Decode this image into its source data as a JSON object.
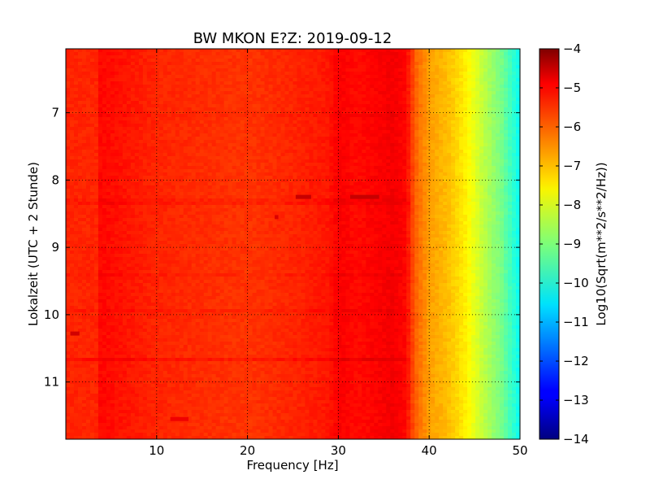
{
  "chart_data": {
    "type": "heatmap",
    "title": "BW MKON E?Z: 2019-09-12",
    "xlabel": "Frequency [Hz]",
    "ylabel": "Lokalzeit (UTC + 2 Stunde)",
    "xlim": [
      0,
      50
    ],
    "ylim": [
      11.85,
      6.05
    ],
    "y_inverted": true,
    "grid": true,
    "x_ticks": [
      10,
      20,
      30,
      40,
      50
    ],
    "y_ticks": [
      7,
      8,
      9,
      10,
      11
    ],
    "colorbar": {
      "label": "Log10(Sqrt(m**2/s**2/Hz))",
      "colormap": "jet",
      "range": [
        -14,
        -4
      ],
      "ticks": [
        -4,
        -5,
        -6,
        -7,
        -8,
        -9,
        -10,
        -11,
        -12,
        -13,
        -14
      ]
    },
    "spectrum_profile": {
      "frequency_hz": [
        0,
        3.5,
        3.8,
        10,
        20,
        25,
        29,
        30,
        32,
        34,
        36,
        37.5,
        38.5,
        40,
        42,
        44,
        46,
        48,
        50
      ],
      "log10_psd": [
        -5.6,
        -5.6,
        -5.3,
        -5.6,
        -5.75,
        -5.6,
        -5.45,
        -5.2,
        -5.35,
        -5.25,
        -5.15,
        -5.3,
        -6.2,
        -6.8,
        -7.1,
        -7.6,
        -8.4,
        -9.1,
        -10.2
      ]
    },
    "events": [
      {
        "frequency_range": [
          25.3,
          27.0
        ],
        "time": 8.25,
        "log10_psd": -4.7
      },
      {
        "frequency_range": [
          31.3,
          34.5
        ],
        "time": 8.25,
        "log10_psd": -4.7
      },
      {
        "frequency_range": [
          0.5,
          1.5
        ],
        "time": 10.28,
        "log10_psd": -4.8
      },
      {
        "frequency_range": [
          23.0,
          23.4
        ],
        "time": 8.55,
        "log10_psd": -4.9
      },
      {
        "frequency_range": [
          11.5,
          13.5
        ],
        "time": 11.55,
        "log10_psd": -5.1
      }
    ]
  }
}
